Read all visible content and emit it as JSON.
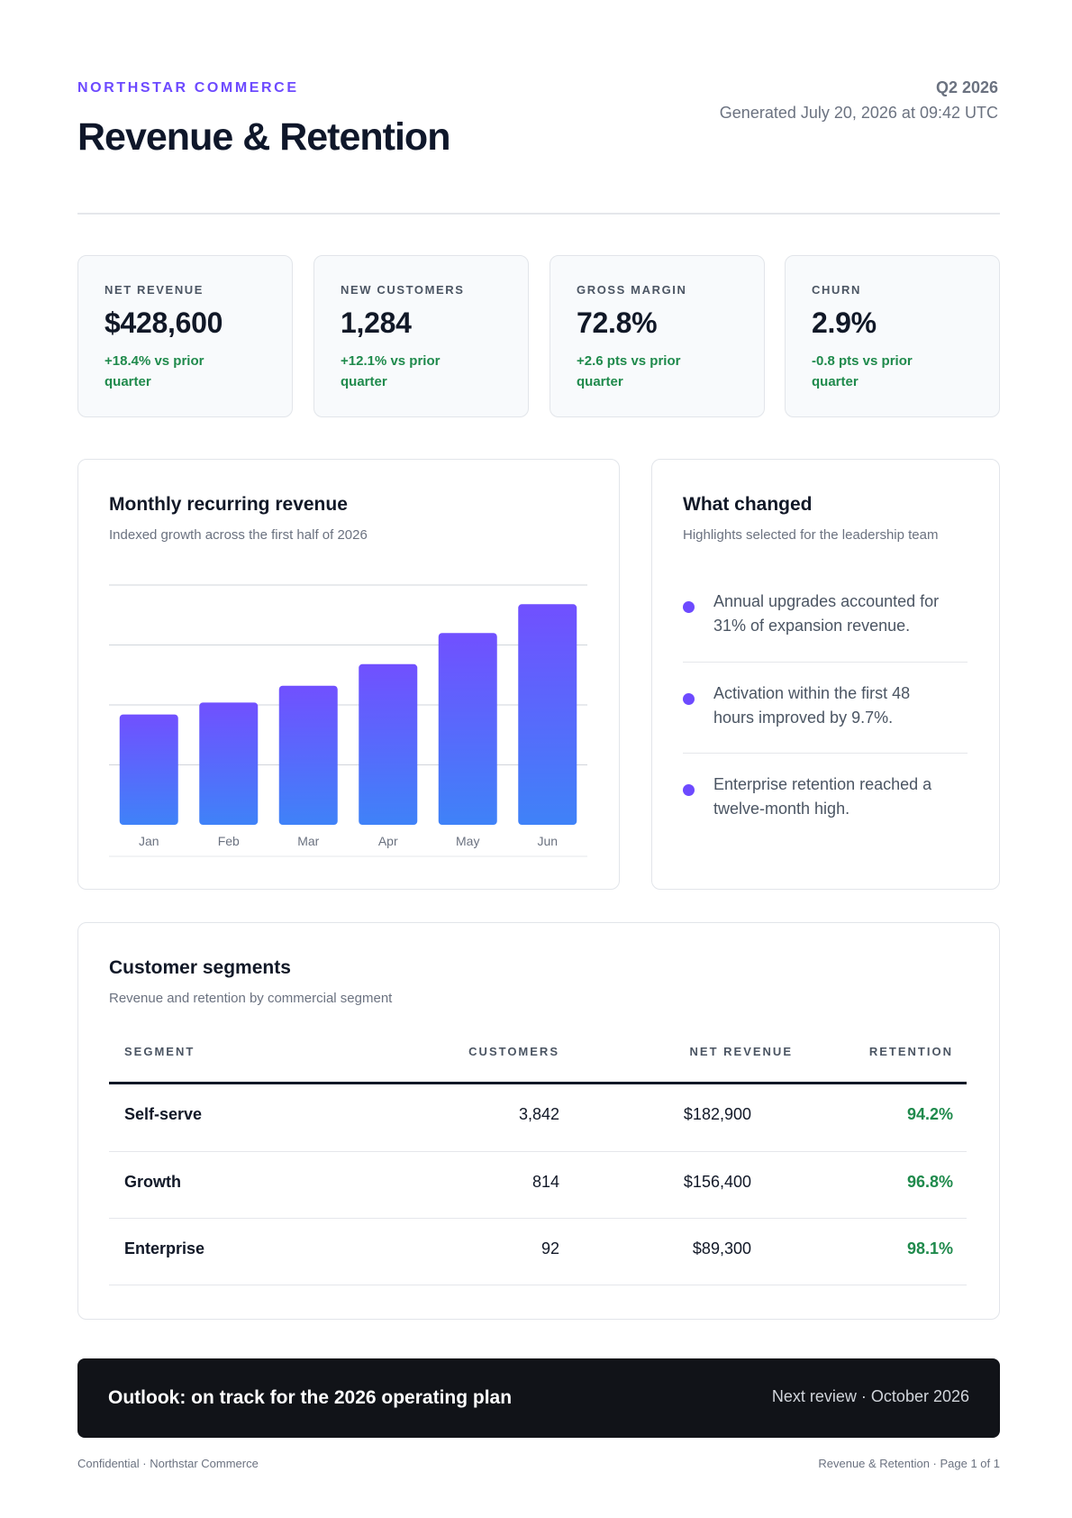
{
  "header": {
    "brand": "NORTHSTAR COMMERCE",
    "title": "Revenue & Retention",
    "period": "Q2 2026",
    "generated": "Generated July 20, 2026 at 09:42 UTC"
  },
  "kpis": [
    {
      "label": "NET REVENUE",
      "value": "$428,600",
      "delta_line1": "+18.4% vs prior",
      "delta_line2": "quarter"
    },
    {
      "label": "NEW CUSTOMERS",
      "value": "1,284",
      "delta_line1": "+12.1% vs prior",
      "delta_line2": "quarter"
    },
    {
      "label": "GROSS MARGIN",
      "value": "72.8%",
      "delta_line1": "+2.6 pts vs prior",
      "delta_line2": "quarter"
    },
    {
      "label": "CHURN",
      "value": "2.9%",
      "delta_line1": "-0.8 pts vs prior",
      "delta_line2": "quarter"
    }
  ],
  "mrr": {
    "title": "Monthly recurring revenue",
    "subtitle": "Indexed growth across the first half of 2026"
  },
  "chart_data": {
    "type": "bar",
    "categories": [
      "Jan",
      "Feb",
      "Mar",
      "Apr",
      "May",
      "Jun"
    ],
    "values": [
      46,
      51,
      58,
      67,
      80,
      92
    ],
    "ylim": [
      0,
      100
    ],
    "grid": true,
    "colors": {
      "top": "#7150ff",
      "bottom": "#3f82f8",
      "grid": "#d1d5db",
      "tick": "#6b7280"
    }
  },
  "highlights": {
    "title": "What changed",
    "subtitle": "Highlights selected for the leadership team",
    "items": [
      {
        "line1": "Annual upgrades accounted for",
        "line2": "31% of expansion revenue."
      },
      {
        "line1": "Activation within the first 48",
        "line2": "hours improved by 9.7%."
      },
      {
        "line1": "Enterprise retention reached a",
        "line2": "twelve-month high."
      }
    ]
  },
  "segments": {
    "title": "Customer segments",
    "subtitle": "Revenue and retention by commercial segment",
    "columns": [
      "SEGMENT",
      "CUSTOMERS",
      "NET REVENUE",
      "RETENTION"
    ],
    "rows": [
      {
        "segment": "Self-serve",
        "customers": "3,842",
        "revenue": "$182,900",
        "retention": "94.2%"
      },
      {
        "segment": "Growth",
        "customers": "814",
        "revenue": "$156,400",
        "retention": "96.8%"
      },
      {
        "segment": "Enterprise",
        "customers": "92",
        "revenue": "$89,300",
        "retention": "98.1%"
      }
    ]
  },
  "outlook": {
    "text": "Outlook: on track for the 2026 operating plan",
    "next_review": "Next review · October 2026"
  },
  "footer": {
    "left": "Confidential · Northstar Commerce",
    "right": "Revenue & Retention · Page 1 of 1"
  },
  "colors": {
    "accent": "#6d4aff",
    "positive": "#1f8a4c",
    "dark": "#111318"
  }
}
